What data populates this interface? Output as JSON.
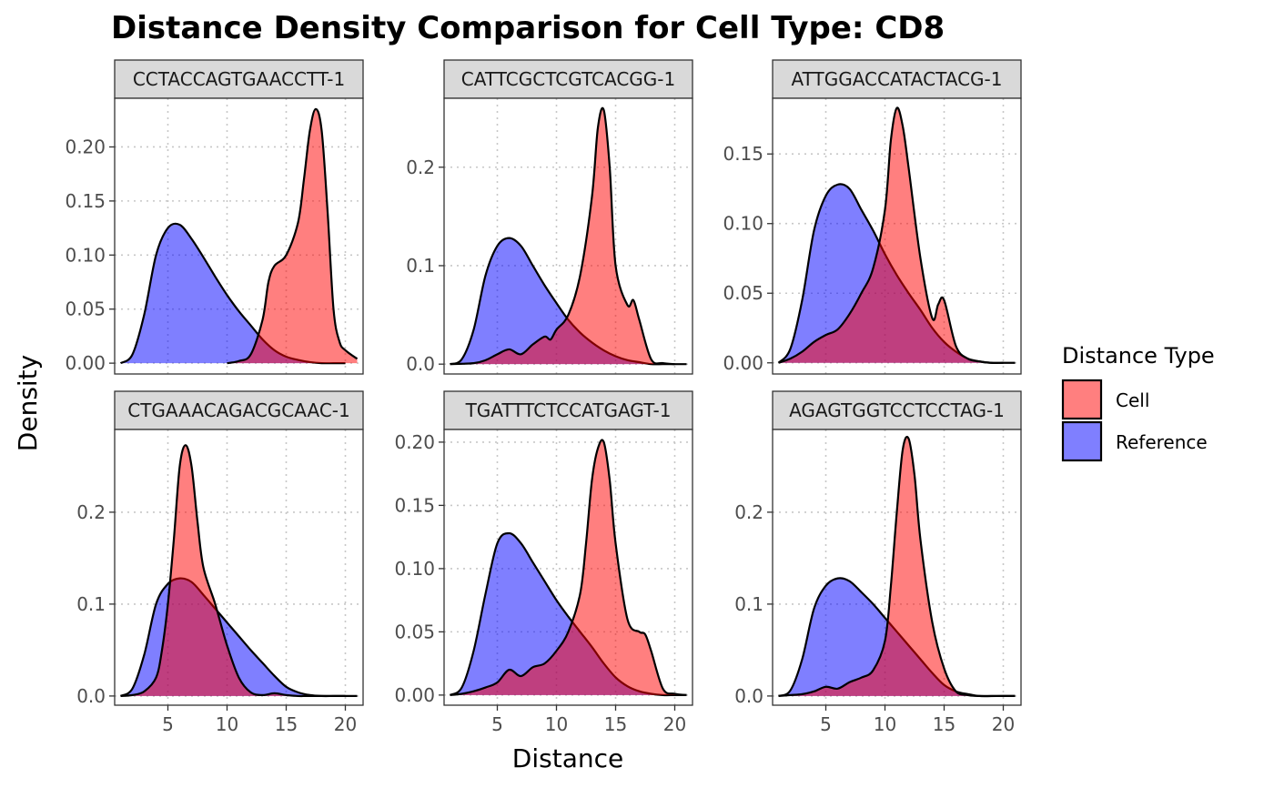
{
  "chart_data": {
    "type": "area",
    "subtype": "density",
    "title": "Distance Density Comparison for Cell Type: CD8",
    "xlabel": "Distance",
    "ylabel": "Density",
    "xlim": [
      0.5,
      21.5
    ],
    "x_ticks": [
      5,
      10,
      15,
      20
    ],
    "grid": "dotted-major",
    "legend": {
      "title": "Distance Type",
      "position": "right",
      "entries": [
        {
          "name": "Cell",
          "color": "#ff0000",
          "alpha": 0.5
        },
        {
          "name": "Reference",
          "color": "#0000ff",
          "alpha": 0.5
        }
      ]
    },
    "panels": [
      {
        "label": "CCTACCAGTGAACCTT-1",
        "ylim": [
          -0.01,
          0.245
        ],
        "y_ticks": [
          0.0,
          0.05,
          0.1,
          0.15,
          0.2
        ],
        "y_tick_labels": [
          "0.00",
          "0.05",
          "0.10",
          "0.15",
          "0.20"
        ],
        "show_x_ticks": false,
        "series": [
          {
            "name": "Reference",
            "x": [
              1.0,
              2.0,
              3.0,
              4.0,
              5.0,
              6.0,
              7.0,
              8.0,
              9.0,
              10.0,
              11.0,
              12.0,
              13.0,
              14.0,
              15.0,
              16.0,
              17.0,
              18.0,
              19.0,
              20.0
            ],
            "y": [
              0.0,
              0.008,
              0.045,
              0.1,
              0.125,
              0.128,
              0.115,
              0.098,
              0.08,
              0.063,
              0.048,
              0.035,
              0.022,
              0.012,
              0.006,
              0.003,
              0.001,
              0.0,
              0.0,
              0.0
            ]
          },
          {
            "name": "Cell",
            "x": [
              10.0,
              11.0,
              12.0,
              13.0,
              13.5,
              14.0,
              15.0,
              16.0,
              16.5,
              17.0,
              17.5,
              18.0,
              18.5,
              19.0,
              19.5,
              20.0,
              21.0
            ],
            "y": [
              0.0,
              0.002,
              0.008,
              0.04,
              0.075,
              0.09,
              0.1,
              0.13,
              0.17,
              0.215,
              0.235,
              0.215,
              0.14,
              0.05,
              0.02,
              0.012,
              0.004
            ]
          }
        ]
      },
      {
        "label": "CATTCGCTCGTCACGG-1",
        "ylim": [
          -0.01,
          0.27
        ],
        "y_ticks": [
          0.0,
          0.1,
          0.2
        ],
        "y_tick_labels": [
          "0.0",
          "0.1",
          "0.2"
        ],
        "show_x_ticks": false,
        "series": [
          {
            "name": "Reference",
            "x": [
              1.0,
              2.0,
              3.0,
              4.0,
              5.0,
              6.0,
              7.0,
              8.0,
              9.0,
              10.0,
              11.0,
              12.0,
              13.0,
              14.0,
              15.0,
              16.0,
              17.0,
              18.0,
              19.0,
              20.0,
              21.0
            ],
            "y": [
              0.0,
              0.005,
              0.035,
              0.09,
              0.12,
              0.128,
              0.12,
              0.1,
              0.08,
              0.062,
              0.045,
              0.032,
              0.022,
              0.014,
              0.008,
              0.004,
              0.002,
              0.0,
              0.0,
              0.0,
              0.0
            ]
          },
          {
            "name": "Cell",
            "x": [
              1.0,
              3.0,
              4.0,
              5.0,
              6.0,
              7.0,
              8.0,
              9.0,
              9.5,
              10.0,
              11.0,
              12.0,
              13.0,
              13.5,
              14.0,
              14.5,
              15.0,
              16.0,
              16.5,
              17.0,
              18.0,
              19.0,
              20.0
            ],
            "y": [
              0.0,
              0.001,
              0.004,
              0.01,
              0.015,
              0.01,
              0.02,
              0.028,
              0.025,
              0.035,
              0.05,
              0.09,
              0.17,
              0.24,
              0.258,
              0.2,
              0.1,
              0.06,
              0.065,
              0.045,
              0.005,
              0.001,
              0.0
            ]
          }
        ]
      },
      {
        "label": "ATTGGACCATACTACG-1",
        "ylim": [
          -0.008,
          0.19
        ],
        "y_ticks": [
          0.0,
          0.05,
          0.1,
          0.15
        ],
        "y_tick_labels": [
          "0.00",
          "0.05",
          "0.10",
          "0.15"
        ],
        "show_x_ticks": false,
        "series": [
          {
            "name": "Reference",
            "x": [
              1.0,
              2.0,
              3.0,
              4.0,
              5.0,
              6.0,
              7.0,
              8.0,
              9.0,
              10.0,
              11.0,
              12.0,
              13.0,
              14.0,
              15.0,
              16.0,
              17.0,
              18.0,
              19.0,
              20.0,
              21.0
            ],
            "y": [
              0.0,
              0.01,
              0.045,
              0.095,
              0.12,
              0.128,
              0.125,
              0.11,
              0.095,
              0.078,
              0.063,
              0.05,
              0.038,
              0.025,
              0.015,
              0.008,
              0.003,
              0.001,
              0.0,
              0.0,
              0.0
            ]
          },
          {
            "name": "Cell",
            "x": [
              1.0,
              2.0,
              3.0,
              4.0,
              5.0,
              6.0,
              7.0,
              8.0,
              9.0,
              10.0,
              10.5,
              11.0,
              11.5,
              12.0,
              13.0,
              14.0,
              14.5,
              15.0,
              16.0,
              17.0,
              18.0,
              19.0,
              20.0
            ],
            "y": [
              0.0,
              0.003,
              0.008,
              0.015,
              0.02,
              0.024,
              0.035,
              0.05,
              0.068,
              0.11,
              0.16,
              0.183,
              0.17,
              0.14,
              0.075,
              0.032,
              0.042,
              0.045,
              0.012,
              0.003,
              0.001,
              0.0,
              0.0
            ]
          }
        ]
      },
      {
        "label": "CTGAAACAGACGCAAC-1",
        "ylim": [
          -0.01,
          0.29
        ],
        "y_ticks": [
          0.0,
          0.1,
          0.2
        ],
        "y_tick_labels": [
          "0.0",
          "0.1",
          "0.2"
        ],
        "show_x_ticks": true,
        "series": [
          {
            "name": "Reference",
            "x": [
              1.0,
              2.0,
              3.0,
              4.0,
              5.0,
              6.0,
              7.0,
              8.0,
              9.0,
              10.0,
              11.0,
              12.0,
              13.0,
              14.0,
              15.0,
              16.0,
              17.0,
              18.0,
              19.0,
              20.0,
              21.0
            ],
            "y": [
              0.0,
              0.008,
              0.045,
              0.1,
              0.122,
              0.128,
              0.124,
              0.11,
              0.095,
              0.08,
              0.065,
              0.05,
              0.036,
              0.022,
              0.01,
              0.004,
              0.001,
              0.0,
              0.0,
              0.0,
              0.0
            ]
          },
          {
            "name": "Cell",
            "x": [
              1.0,
              2.0,
              3.0,
              4.0,
              4.5,
              5.0,
              5.5,
              6.0,
              6.5,
              7.0,
              7.5,
              8.0,
              9.0,
              10.0,
              11.0,
              12.0,
              13.0,
              14.0,
              15.0,
              16.0,
              17.0,
              20.0
            ],
            "y": [
              0.0,
              0.001,
              0.005,
              0.02,
              0.05,
              0.1,
              0.17,
              0.25,
              0.273,
              0.25,
              0.19,
              0.14,
              0.1,
              0.055,
              0.02,
              0.004,
              0.001,
              0.003,
              0.001,
              0.0,
              0.0,
              0.0
            ]
          }
        ]
      },
      {
        "label": "TGATTTCTCCATGAGT-1",
        "ylim": [
          -0.008,
          0.21
        ],
        "y_ticks": [
          0.0,
          0.05,
          0.1,
          0.15,
          0.2
        ],
        "y_tick_labels": [
          "0.00",
          "0.05",
          "0.10",
          "0.15",
          "0.20"
        ],
        "show_x_ticks": true,
        "series": [
          {
            "name": "Reference",
            "x": [
              1.0,
              2.0,
              3.0,
              4.0,
              5.0,
              6.0,
              7.0,
              8.0,
              9.0,
              10.0,
              11.0,
              12.0,
              13.0,
              14.0,
              15.0,
              16.0,
              17.0,
              18.0,
              19.0,
              20.0,
              21.0
            ],
            "y": [
              0.0,
              0.006,
              0.035,
              0.08,
              0.12,
              0.128,
              0.12,
              0.105,
              0.09,
              0.075,
              0.062,
              0.05,
              0.038,
              0.025,
              0.014,
              0.007,
              0.003,
              0.001,
              0.0,
              0.0,
              0.0
            ]
          },
          {
            "name": "Cell",
            "x": [
              1.0,
              2.0,
              3.0,
              4.0,
              5.0,
              6.0,
              7.0,
              8.0,
              9.0,
              10.0,
              11.0,
              12.0,
              12.5,
              13.0,
              13.5,
              14.0,
              14.5,
              15.0,
              16.0,
              17.0,
              17.5,
              18.0,
              19.0,
              20.0,
              21.0
            ],
            "y": [
              0.0,
              0.001,
              0.003,
              0.006,
              0.01,
              0.02,
              0.015,
              0.022,
              0.025,
              0.035,
              0.05,
              0.08,
              0.12,
              0.17,
              0.195,
              0.2,
              0.17,
              0.12,
              0.06,
              0.05,
              0.048,
              0.035,
              0.005,
              0.001,
              0.0
            ]
          }
        ]
      },
      {
        "label": "AGAGTGGTCCTCCTAG-1",
        "ylim": [
          -0.01,
          0.29
        ],
        "y_ticks": [
          0.0,
          0.1,
          0.2
        ],
        "y_tick_labels": [
          "0.0",
          "0.1",
          "0.2"
        ],
        "show_x_ticks": true,
        "series": [
          {
            "name": "Reference",
            "x": [
              1.0,
              2.0,
              3.0,
              4.0,
              5.0,
              6.0,
              7.0,
              8.0,
              9.0,
              10.0,
              11.0,
              12.0,
              13.0,
              14.0,
              15.0,
              16.0,
              17.0,
              18.0,
              19.0,
              20.0,
              21.0
            ],
            "y": [
              0.0,
              0.006,
              0.04,
              0.095,
              0.12,
              0.128,
              0.125,
              0.113,
              0.1,
              0.085,
              0.07,
              0.055,
              0.04,
              0.025,
              0.012,
              0.005,
              0.002,
              0.0,
              0.0,
              0.0,
              0.0
            ]
          },
          {
            "name": "Cell",
            "x": [
              1.0,
              2.0,
              3.0,
              4.0,
              5.0,
              6.0,
              7.0,
              8.0,
              9.0,
              10.0,
              10.5,
              11.0,
              11.5,
              12.0,
              12.5,
              13.0,
              14.0,
              15.0,
              16.0,
              17.0,
              18.0,
              20.0,
              21.0
            ],
            "y": [
              0.0,
              0.001,
              0.002,
              0.005,
              0.01,
              0.008,
              0.015,
              0.02,
              0.028,
              0.06,
              0.12,
              0.2,
              0.268,
              0.28,
              0.24,
              0.17,
              0.08,
              0.03,
              0.005,
              0.001,
              0.0,
              0.0,
              0.0
            ]
          }
        ]
      }
    ]
  }
}
